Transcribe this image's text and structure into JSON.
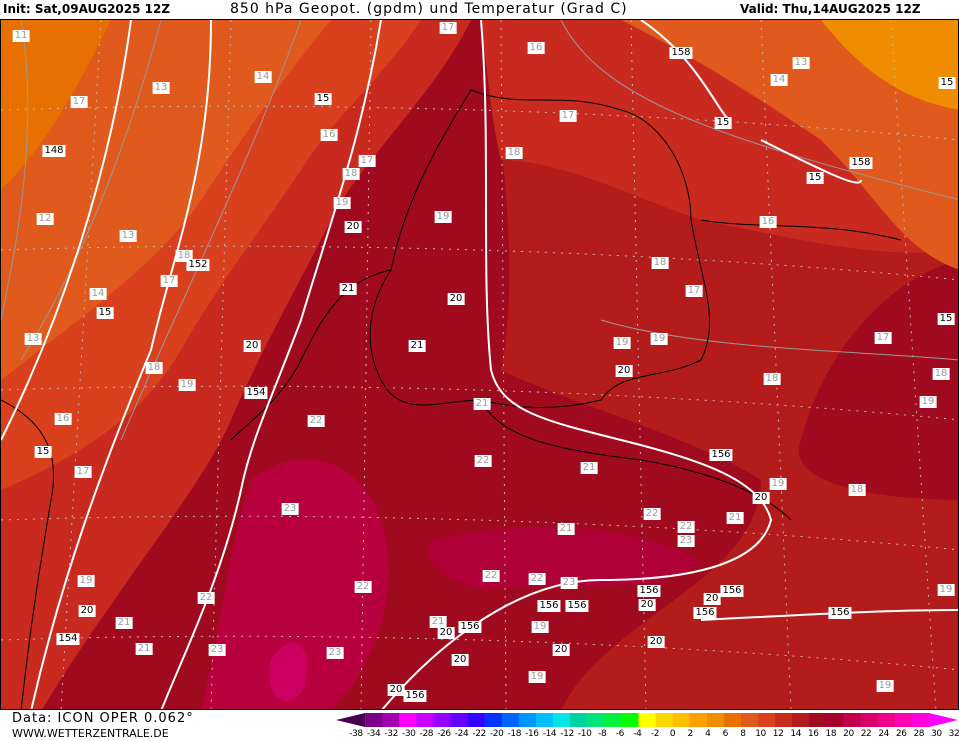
{
  "header": {
    "init": "Init: Sat,09AUG2025 12Z",
    "title": "850 hPa Geopot. (gpdm) und Temperatur (Grad C)",
    "valid": "Valid: Thu,14AUG2025 12Z"
  },
  "footer": {
    "data_source": "Data: ICON OPER 0.062°",
    "website": "WWW.WETTERZENTRALE.DE"
  },
  "legend": {
    "ticks": [
      "-38",
      "-34",
      "-32",
      "-30",
      "-28",
      "-26",
      "-24",
      "-22",
      "-20",
      "-18",
      "-16",
      "-14",
      "-12",
      "-10",
      "-8",
      "-6",
      "-4",
      "-2",
      "0",
      "2",
      "4",
      "6",
      "8",
      "10",
      "12",
      "14",
      "16",
      "18",
      "20",
      "22",
      "24",
      "26",
      "28",
      "30",
      "32"
    ],
    "colors": [
      "#4a0050",
      "#7a0088",
      "#a400b0",
      "#ff00ff",
      "#c800ff",
      "#9600ff",
      "#6400ff",
      "#3200ff",
      "#0032ff",
      "#0064ff",
      "#0096ff",
      "#00c0ff",
      "#00e6e6",
      "#00d2a0",
      "#00e678",
      "#00f03c",
      "#00ff00",
      "#ffff00",
      "#ffd700",
      "#ffbe00",
      "#ffa000",
      "#f08c00",
      "#e87000",
      "#e05a1e",
      "#d8401e",
      "#c82a20",
      "#b41c1c",
      "#a00a1e",
      "#a8002c",
      "#c0004a",
      "#d80068",
      "#f00088",
      "#ff00b4",
      "#ff00dc",
      "#ff00ff"
    ]
  },
  "map": {
    "temperature_labels": [
      "11",
      "17",
      "16",
      "14",
      "13",
      "13",
      "14",
      "17",
      "17",
      "16",
      "18",
      "17",
      "18",
      "19",
      "19",
      "12",
      "16",
      "13",
      "18",
      "17",
      "18",
      "14",
      "17",
      "13",
      "17",
      "19",
      "19",
      "18",
      "19",
      "18",
      "18",
      "19",
      "16",
      "22",
      "21",
      "22",
      "21",
      "17",
      "19",
      "18",
      "23",
      "22",
      "22",
      "23",
      "21",
      "21",
      "22",
      "19",
      "22",
      "22",
      "22",
      "23",
      "19",
      "21",
      "21",
      "23",
      "23",
      "19",
      "19",
      "19",
      "21"
    ],
    "contour_labels": [
      "15",
      "148",
      "15",
      "158",
      "15",
      "158",
      "20",
      "152",
      "15",
      "21",
      "20",
      "20",
      "21",
      "20",
      "154",
      "15",
      "156",
      "20",
      "15",
      "15",
      "20",
      "154",
      "156",
      "156",
      "156",
      "20",
      "156",
      "20",
      "156",
      "156",
      "20",
      "20",
      "20",
      "20",
      "156",
      "156",
      "20"
    ]
  }
}
